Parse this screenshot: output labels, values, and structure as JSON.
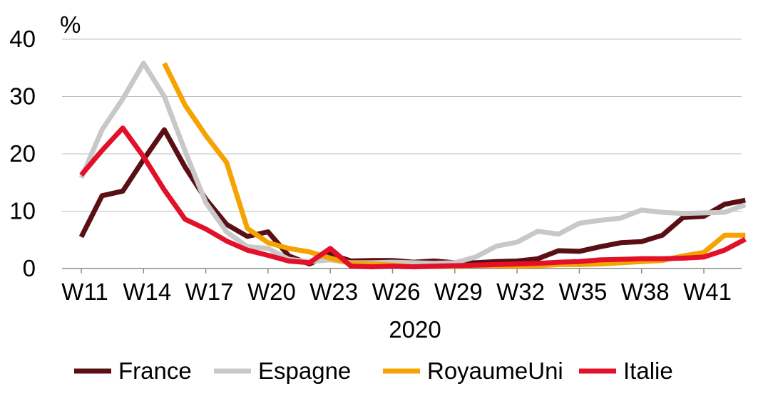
{
  "chart_data": {
    "type": "line",
    "ylabel": "%",
    "xlabel": "2020",
    "ylim": [
      0,
      40
    ],
    "y_ticks": [
      "0",
      "10",
      "20",
      "30",
      "40"
    ],
    "y_tick_values": [
      0,
      10,
      20,
      30,
      40
    ],
    "x_ticks": [
      "W11",
      "W14",
      "W17",
      "W20",
      "W23",
      "W26",
      "W29",
      "W32",
      "W35",
      "W38",
      "W41"
    ],
    "x_tick_weeks": [
      11,
      14,
      17,
      20,
      23,
      26,
      29,
      32,
      35,
      38,
      41
    ],
    "x_range": [
      10.5,
      43
    ],
    "grid": true,
    "legend_position": "bottom",
    "series": [
      {
        "name": "France",
        "color": "#5a0f14",
        "x": [
          11,
          12,
          13,
          14,
          15,
          16,
          17,
          18,
          19,
          20,
          21,
          22,
          23,
          24,
          25,
          26,
          27,
          28,
          29,
          30,
          31,
          32,
          33,
          34,
          35,
          36,
          37,
          38,
          39,
          40,
          41,
          42,
          43
        ],
        "values": [
          5.5,
          12.7,
          13.5,
          19,
          24.2,
          17.7,
          12.1,
          7.7,
          5.6,
          6.4,
          2.2,
          0.8,
          2.5,
          1.3,
          1.4,
          1.4,
          1.1,
          1.3,
          1.0,
          1.0,
          1.2,
          1.3,
          1.7,
          3.1,
          3.0,
          3.8,
          4.5,
          4.7,
          5.8,
          8.9,
          9.1,
          11.2,
          11.9
        ]
      },
      {
        "name": "Espagne",
        "color": "#c8c8c8",
        "x": [
          11,
          12,
          13,
          14,
          15,
          16,
          17,
          18,
          19,
          20,
          21,
          22,
          23,
          24,
          25,
          26,
          27,
          28,
          29,
          30,
          31,
          32,
          33,
          34,
          35,
          36,
          37,
          38,
          39,
          40,
          41,
          42,
          43
        ],
        "values": [
          15.8,
          24.2,
          29.6,
          35.8,
          30.0,
          20.5,
          11.5,
          6.4,
          3.8,
          3.5,
          1.6,
          1.2,
          1.5,
          1.0,
          1.0,
          1.1,
          1.0,
          0.9,
          1.0,
          2.0,
          3.9,
          4.6,
          6.5,
          6.0,
          7.9,
          8.4,
          8.8,
          10.2,
          9.8,
          9.6,
          9.7,
          9.8,
          11.1
        ]
      },
      {
        "name": "RoyaumeUni",
        "color": "#f5a300",
        "x": [
          15,
          16,
          17,
          18,
          19,
          20,
          21,
          22,
          23,
          24,
          25,
          26,
          27,
          28,
          29,
          30,
          31,
          32,
          33,
          34,
          35,
          36,
          37,
          38,
          39,
          40,
          41,
          42,
          43
        ],
        "values": [
          35.8,
          28.5,
          23.2,
          18.5,
          7.0,
          4.5,
          3.5,
          2.9,
          1.8,
          0.9,
          0.8,
          0.6,
          0.3,
          0.4,
          0.4,
          0.5,
          0.5,
          0.4,
          0.5,
          0.7,
          0.7,
          0.8,
          1.0,
          1.2,
          1.4,
          2.2,
          2.8,
          5.8,
          5.8
        ]
      },
      {
        "name": "Italie",
        "color": "#e3102a",
        "x": [
          11,
          12,
          13,
          14,
          15,
          16,
          17,
          18,
          19,
          20,
          21,
          22,
          23,
          24,
          25,
          26,
          27,
          28,
          29,
          30,
          31,
          32,
          33,
          34,
          35,
          36,
          37,
          38,
          39,
          40,
          41,
          42,
          43
        ],
        "values": [
          16.3,
          20.6,
          24.5,
          19.5,
          13.7,
          8.6,
          6.9,
          4.8,
          3.2,
          2.3,
          1.3,
          1.0,
          3.5,
          0.4,
          0.3,
          0.4,
          0.3,
          0.4,
          0.5,
          0.6,
          0.7,
          0.8,
          0.9,
          1.1,
          1.2,
          1.5,
          1.6,
          1.7,
          1.7,
          1.8,
          2.0,
          3.2,
          5.1
        ]
      }
    ]
  }
}
